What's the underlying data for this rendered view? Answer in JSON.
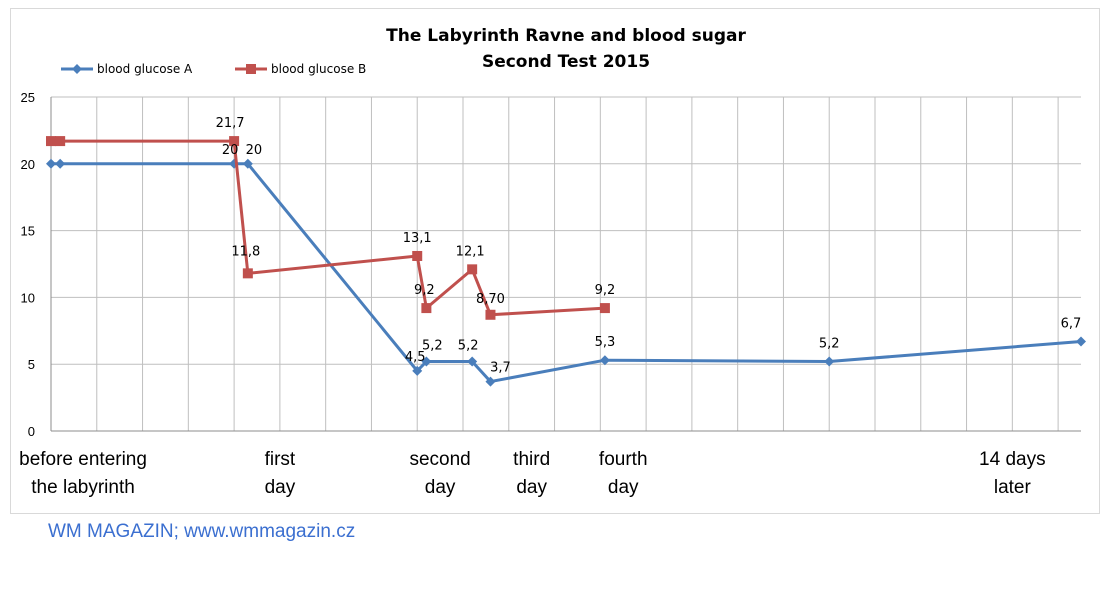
{
  "chart_data": {
    "type": "line",
    "title": "The Labyrinth Ravne and blood sugar",
    "subtitle": "Second Test 2015",
    "ylim": [
      0,
      25
    ],
    "yticks": [
      "0",
      "5",
      "10",
      "15",
      "20",
      "25"
    ],
    "grid": true,
    "legend": "top-left",
    "x_labels": [
      {
        "lines": [
          "before entering",
          "the labyrinth"
        ],
        "x": 0.7
      },
      {
        "lines": [
          "first",
          "day"
        ],
        "x": 5
      },
      {
        "lines": [
          "second",
          "day"
        ],
        "x": 8.5
      },
      {
        "lines": [
          "third",
          "day"
        ],
        "x": 10.5
      },
      {
        "lines": [
          "fourth",
          "day"
        ],
        "x": 12.5
      },
      {
        "lines": [
          "14 days",
          "later"
        ],
        "x": 21
      }
    ],
    "series": [
      {
        "name": "blood glucose A",
        "color": "#4a7ebb",
        "marker": "diamond",
        "points": [
          {
            "x": 0,
            "y": 20,
            "label": ""
          },
          {
            "x": 0.2,
            "y": 20,
            "label": ""
          },
          {
            "x": 4,
            "y": 20,
            "label": "20"
          },
          {
            "x": 4.3,
            "y": 20,
            "label": "20"
          },
          {
            "x": 8,
            "y": 4.5,
            "label": "4,5"
          },
          {
            "x": 8.2,
            "y": 5.2,
            "label": "5,2"
          },
          {
            "x": 9.2,
            "y": 5.2,
            "label": "5,2"
          },
          {
            "x": 9.6,
            "y": 3.7,
            "label": "3,7"
          },
          {
            "x": 12.1,
            "y": 5.3,
            "label": "5,3"
          },
          {
            "x": 17,
            "y": 5.2,
            "label": "5,2"
          },
          {
            "x": 22.5,
            "y": 6.7,
            "label": "6,7"
          }
        ]
      },
      {
        "name": "blood glucose B",
        "color": "#c0504d",
        "marker": "square",
        "points": [
          {
            "x": 0,
            "y": 21.7,
            "label": ""
          },
          {
            "x": 0.2,
            "y": 21.7,
            "label": ""
          },
          {
            "x": 4,
            "y": 21.7,
            "label": "21,7"
          },
          {
            "x": 4.3,
            "y": 11.8,
            "label": "11,8"
          },
          {
            "x": 8,
            "y": 13.1,
            "label": "13,1"
          },
          {
            "x": 8.2,
            "y": 9.2,
            "label": "9,2"
          },
          {
            "x": 9.2,
            "y": 12.1,
            "label": "12,1"
          },
          {
            "x": 9.6,
            "y": 8.7,
            "label": "8,70"
          },
          {
            "x": 12.1,
            "y": 9.2,
            "label": "9,2"
          }
        ]
      }
    ]
  },
  "footer": {
    "source": "WM MAGAZIN; www.wmmagazin.cz"
  }
}
